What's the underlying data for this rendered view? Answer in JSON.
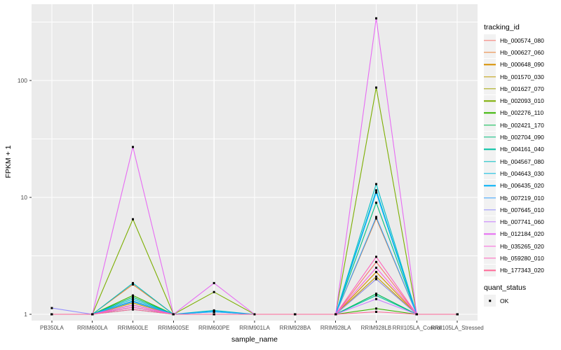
{
  "figure": {
    "ylabel": "FPKM + 1",
    "xlabel": "sample_name",
    "y_tick_labels": [
      "1",
      "10",
      "100"
    ],
    "colors": {
      "panel_background": "#EBEBEB",
      "gridline": "#FFFFFF",
      "tick_text": "#4D4D4D",
      "axis_title_text": "#000000",
      "legend_key_background": "#F2F2F2",
      "point": "#000000"
    }
  },
  "legend": {
    "tracking_title": "tracking_id",
    "quant_title": "quant_status",
    "quant_items": [
      {
        "label": "OK",
        "marker": "black-square"
      }
    ]
  },
  "chart_data": {
    "type": "line",
    "x_type": "categorical",
    "title": "",
    "xlabel": "sample_name",
    "ylabel": "FPKM + 1",
    "y_scale": "log10",
    "ylim": [
      0.88,
      450
    ],
    "y_major_gridlines": [
      1,
      10,
      100
    ],
    "y_minor_gridlines": [
      3.162,
      31.62,
      316.2
    ],
    "grid": true,
    "legend_position": "right",
    "point_marker": "filled-black-square",
    "quant_status_all_points": "OK",
    "categories": [
      "PB350LA",
      "RRIM600LA",
      "RRIM600LE",
      "RRIM600SE",
      "RRIM600PE",
      "RRIM901LA",
      "RRIM928BA",
      "RRIM928LA",
      "RRIM928LB",
      "RRII105LA_Control",
      "RRII105LA_Stressed"
    ],
    "series": [
      {
        "name": "Hb_000574_080",
        "color": "#F8766D",
        "values": [
          1,
          1,
          1.2,
          1,
          1,
          1,
          1,
          1,
          2.8,
          1,
          1
        ]
      },
      {
        "name": "Hb_000627_060",
        "color": "#EB8335",
        "values": [
          1,
          1,
          1.8,
          1,
          1,
          1,
          1,
          1,
          6.6,
          1,
          1
        ]
      },
      {
        "name": "Hb_000648_090",
        "color": "#D89000",
        "values": [
          1,
          1,
          1.3,
          1,
          1,
          1,
          1,
          1,
          2.3,
          1,
          1
        ]
      },
      {
        "name": "Hb_001570_030",
        "color": "#C09B00",
        "values": [
          1,
          1,
          1.25,
          1,
          1,
          1,
          1,
          1,
          2.1,
          1,
          1
        ]
      },
      {
        "name": "Hb_001627_070",
        "color": "#A3A500",
        "values": [
          1,
          1,
          1.2,
          1,
          1,
          1,
          1,
          1,
          2.0,
          1,
          1
        ]
      },
      {
        "name": "Hb_002093_010",
        "color": "#7CAE00",
        "values": [
          1,
          1,
          6.5,
          1,
          1.55,
          1,
          1,
          1,
          87,
          1,
          1
        ]
      },
      {
        "name": "Hb_002276_110",
        "color": "#39B600",
        "values": [
          1,
          1,
          1.45,
          1,
          1,
          1,
          1,
          1,
          1.12,
          1,
          1
        ]
      },
      {
        "name": "Hb_002421_170",
        "color": "#00BB4E",
        "values": [
          1,
          1,
          1.15,
          1,
          1,
          1,
          1,
          1,
          1.5,
          1,
          1
        ]
      },
      {
        "name": "Hb_002704_090",
        "color": "#00BF7D",
        "values": [
          1,
          1,
          1.4,
          1,
          1,
          1,
          1,
          1,
          9,
          1,
          1
        ]
      },
      {
        "name": "Hb_004161_040",
        "color": "#00C1A3",
        "values": [
          1,
          1,
          1.1,
          1,
          1,
          1,
          1,
          1,
          1.45,
          1,
          1
        ]
      },
      {
        "name": "Hb_004567_080",
        "color": "#00BFC4",
        "values": [
          1,
          1,
          1.85,
          1,
          1.08,
          1,
          1,
          1,
          13,
          1,
          1
        ]
      },
      {
        "name": "Hb_004643_030",
        "color": "#00BAE0",
        "values": [
          1,
          1,
          1.35,
          1,
          1.05,
          1,
          1,
          1,
          11.5,
          1,
          1
        ]
      },
      {
        "name": "Hb_006435_020",
        "color": "#00B0F6",
        "values": [
          1,
          1,
          1.3,
          1,
          1.06,
          1,
          1,
          1,
          11,
          1,
          1
        ]
      },
      {
        "name": "Hb_007219_010",
        "color": "#35A2FF",
        "values": [
          1,
          1,
          1.28,
          1,
          1.05,
          1,
          1,
          1,
          6.8,
          1,
          1
        ]
      },
      {
        "name": "Hb_007645_010",
        "color": "#9590FF",
        "values": [
          1.13,
          1,
          1.2,
          1,
          1,
          1,
          1,
          1,
          2.0,
          1,
          1
        ]
      },
      {
        "name": "Hb_007741_060",
        "color": "#C77CFF",
        "values": [
          1,
          1,
          1.15,
          1,
          1,
          1,
          1,
          1,
          1.35,
          1,
          1
        ]
      },
      {
        "name": "Hb_012184_020",
        "color": "#E76BF3",
        "values": [
          1,
          1,
          27,
          1,
          1.85,
          1,
          1,
          1,
          340,
          1,
          1
        ]
      },
      {
        "name": "Hb_035265_020",
        "color": "#FA62DB",
        "values": [
          1,
          1,
          1.2,
          1,
          1,
          1,
          1,
          1,
          2.5,
          1,
          1
        ]
      },
      {
        "name": "Hb_059280_010",
        "color": "#FF62BC",
        "values": [
          1,
          1,
          1.15,
          1,
          1,
          1,
          1,
          1,
          3.1,
          1,
          1
        ]
      },
      {
        "name": "Hb_177343_020",
        "color": "#FF6A98",
        "values": [
          1,
          1,
          1.1,
          1,
          1,
          1,
          1,
          1,
          1.05,
          1,
          1
        ]
      }
    ]
  }
}
